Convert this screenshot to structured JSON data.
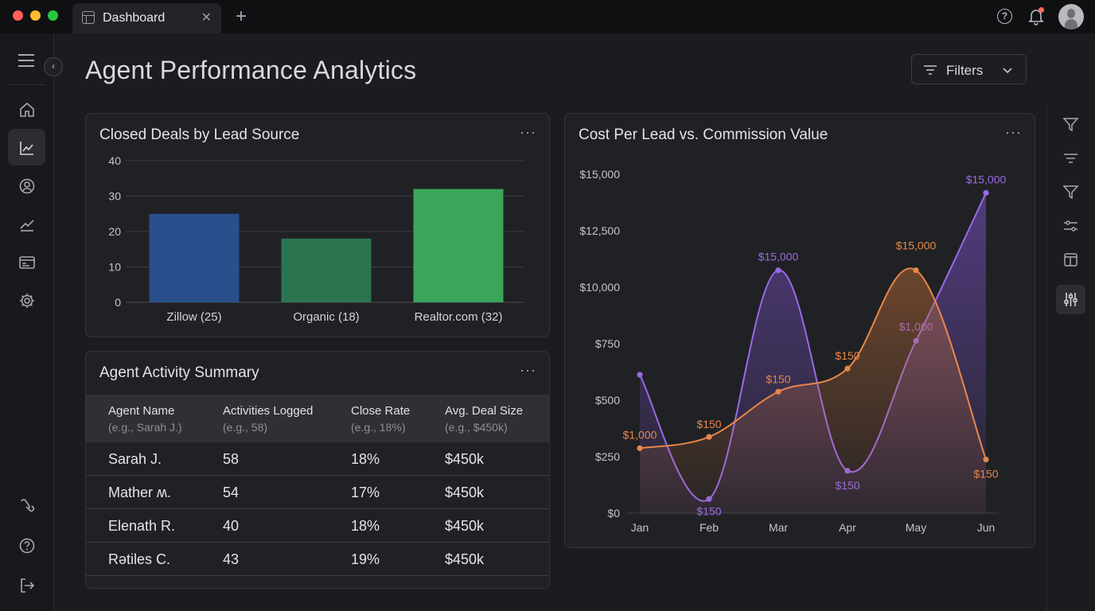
{
  "tab": {
    "label": "Dashboard",
    "close": "✕",
    "new": "+"
  },
  "page": {
    "title": "Agent Performance Analytics"
  },
  "filters": {
    "label": "Filters"
  },
  "bar_card": {
    "title": "Closed Deals by Lead Source",
    "more": "···"
  },
  "line_card": {
    "title": "Cost Per Lead vs. Commission Value",
    "more": "···"
  },
  "table_card": {
    "title": "Agent Activity Summary",
    "more": "···",
    "columns": [
      {
        "label": "Agent Name",
        "hint": "(e.g., Sarah J.)"
      },
      {
        "label": "Activities Logged",
        "hint": "(e.g., 58)"
      },
      {
        "label": "Close Rate",
        "hint": "(e.g., 18%)"
      },
      {
        "label": "Avg. Deal Size",
        "hint": "(e.g., $450k)"
      }
    ],
    "rows": [
      {
        "name": "Sarah J.",
        "activities": "58",
        "close_rate": "18%",
        "deal_size": "$450k"
      },
      {
        "name": "Mather ʍ.",
        "activities": "54",
        "close_rate": "17%",
        "deal_size": "$450k"
      },
      {
        "name": "Elenath R.",
        "activities": "40",
        "close_rate": "18%",
        "deal_size": "$450k"
      },
      {
        "name": "Rәtiles C.",
        "activities": "43",
        "close_rate": "19%",
        "deal_size": "$450k"
      }
    ]
  },
  "icons": {
    "sidebar": [
      "menu-icon",
      "home-icon",
      "chart-icon",
      "users-icon",
      "trend-icon",
      "card-icon",
      "gear-icon",
      "link-icon",
      "help-icon",
      "logout-icon"
    ],
    "right": [
      "funnel-icon",
      "sort-icon",
      "funnel-icon",
      "sliders-icon",
      "panel-icon",
      "tune-icon"
    ]
  },
  "colors": {
    "bar1": "#2a4f8c",
    "bar2": "#2b7450",
    "bar3": "#3ba55a",
    "purple": "#9a6ae6",
    "orange": "#e8874a"
  },
  "chart_data": [
    {
      "type": "bar",
      "title": "Closed Deals by Lead Source",
      "categories": [
        "Zillow (25)",
        "Organic (18)",
        "Realtor.com (32)"
      ],
      "values": [
        25,
        18,
        32
      ],
      "yticks": [
        "0",
        "10",
        "20",
        "30",
        "40"
      ],
      "ylim": [
        0,
        40
      ],
      "grid": true
    },
    {
      "type": "line",
      "title": "Cost Per Lead vs. Commission Value",
      "categories": [
        "Jan",
        "Feb",
        "Mar",
        "Apr",
        "May",
        "Jun"
      ],
      "yticks": [
        "$0",
        "$250",
        "$500",
        "$750",
        "$10,000",
        "$12,500",
        "$15,000"
      ],
      "series": [
        {
          "color": "purple",
          "values": [
            2.45,
            0.25,
            4.3,
            0.75,
            3.05,
            5.67
          ],
          "labels": [
            "",
            "$150",
            "$15,000",
            "$150",
            "$1,000",
            "$15,000"
          ]
        },
        {
          "color": "orange",
          "values": [
            1.15,
            1.35,
            2.15,
            2.56,
            4.3,
            0.95
          ],
          "labels": [
            "$1,000",
            "$150",
            "$150",
            "$150",
            "$15,000",
            "$150"
          ]
        }
      ],
      "grid": false
    }
  ]
}
